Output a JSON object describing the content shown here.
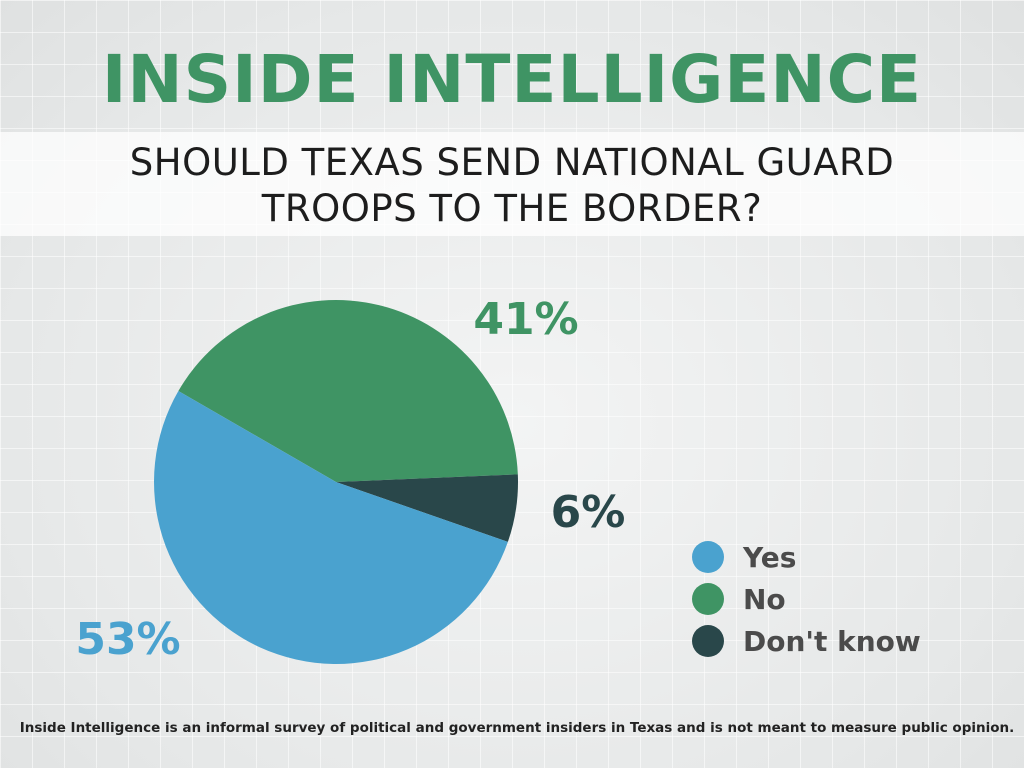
{
  "header": {
    "title": "INSIDE INTELLIGENCE",
    "question_line1": "SHOULD TEXAS SEND NATIONAL GUARD",
    "question_line2": "TROOPS TO THE BORDER?"
  },
  "chart_data": {
    "type": "pie",
    "title": "SHOULD TEXAS SEND NATIONAL GUARD TROOPS TO THE BORDER?",
    "categories": [
      "Yes",
      "No",
      "Don't know"
    ],
    "values": [
      53,
      41,
      6
    ],
    "value_labels": [
      "53%",
      "41%",
      "6%"
    ],
    "colors": [
      "#4aa2cf",
      "#3f9464",
      "#29474a"
    ],
    "legend": {
      "placement": "right",
      "entries": [
        "Yes",
        "No",
        "Don't know"
      ]
    },
    "grid": false
  },
  "footer": {
    "note": "Inside Intelligence is an informal survey of political and government insiders in Texas and is not meant to measure public opinion."
  }
}
